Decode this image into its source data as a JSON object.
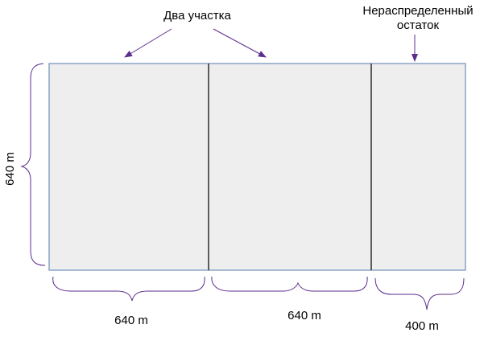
{
  "labels": {
    "two_plots": "Два участка",
    "remainder_line1": "Нераспределенный",
    "remainder_line2": "остаток",
    "left_side": "640 m",
    "bottom_plot1": "640 m",
    "bottom_plot2": "640 m",
    "bottom_remainder": "400 m"
  },
  "colors": {
    "field_fill": "#eeeeee",
    "field_outline": "#6f8fb8",
    "divider": "#2b2b2b",
    "annotation": "#5b2d8e"
  }
}
